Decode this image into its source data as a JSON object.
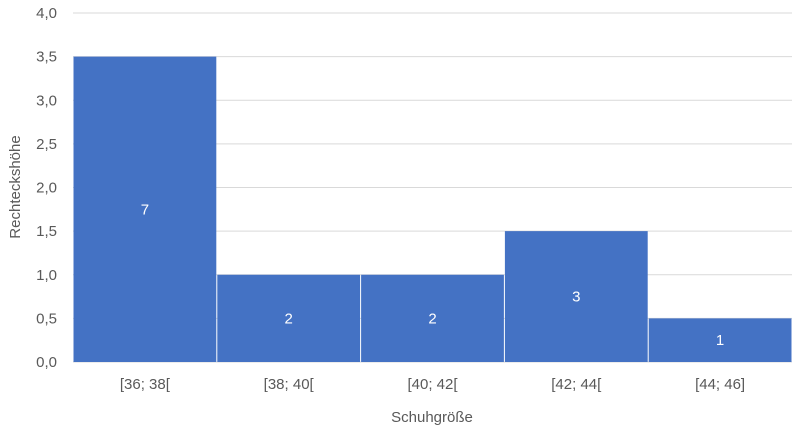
{
  "chart_data": {
    "type": "bar",
    "categories": [
      "[36; 38[",
      "[38; 40[",
      "[40; 42[",
      "[42; 44[",
      "[44; 46]"
    ],
    "values": [
      3.5,
      1.0,
      1.0,
      1.5,
      0.5
    ],
    "data_labels": [
      "7",
      "2",
      "2",
      "3",
      "1"
    ],
    "y_ticks": [
      "0,0",
      "0,5",
      "1,0",
      "1,5",
      "2,0",
      "2,5",
      "3,0",
      "3,5",
      "4,0"
    ],
    "ylim": [
      0,
      4
    ],
    "title": "",
    "xlabel": "Schuhgröße",
    "ylabel": "Rechteckshöhe",
    "grid": true,
    "bar_color": "#4472C4",
    "grid_color": "#D9D9D9"
  }
}
